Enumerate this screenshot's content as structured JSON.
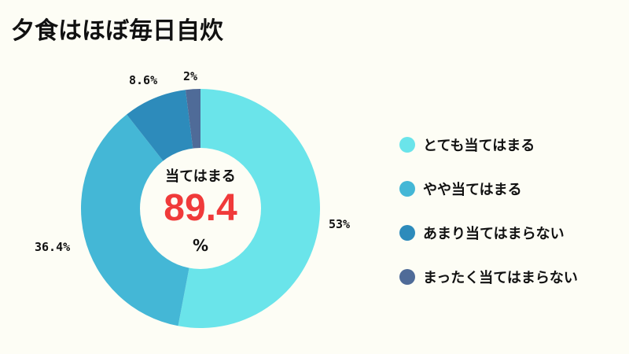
{
  "title": "夕食はほぼ毎日自炊",
  "center": {
    "caption": "当てはまる",
    "value": "89.4",
    "unit": "%"
  },
  "chart_data": {
    "type": "pie",
    "title": "夕食はほぼ毎日自炊",
    "donut": true,
    "categories": [
      "とても当てはまる",
      "やや当てはまる",
      "あまり当てはまらない",
      "まったく当てはまらない"
    ],
    "values": [
      53,
      36.4,
      8.6,
      2
    ],
    "labels": [
      "53%",
      "36.4%",
      "8.6%",
      "2%"
    ],
    "colors": [
      "#6ae4ea",
      "#44b7d6",
      "#2d8bbb",
      "#4f6b98"
    ],
    "center_annotation": "当てはまる 89.4 %",
    "legend_position": "right"
  },
  "legend": [
    {
      "label": "とても当てはまる",
      "color": "#6ae4ea"
    },
    {
      "label": "やや当てはまる",
      "color": "#44b7d6"
    },
    {
      "label": "あまり当てはまらない",
      "color": "#2d8bbb"
    },
    {
      "label": "まったく当てはまらない",
      "color": "#4f6b98"
    }
  ],
  "slice_labels": [
    "53%",
    "36.4%",
    "8.6%",
    "2%"
  ]
}
